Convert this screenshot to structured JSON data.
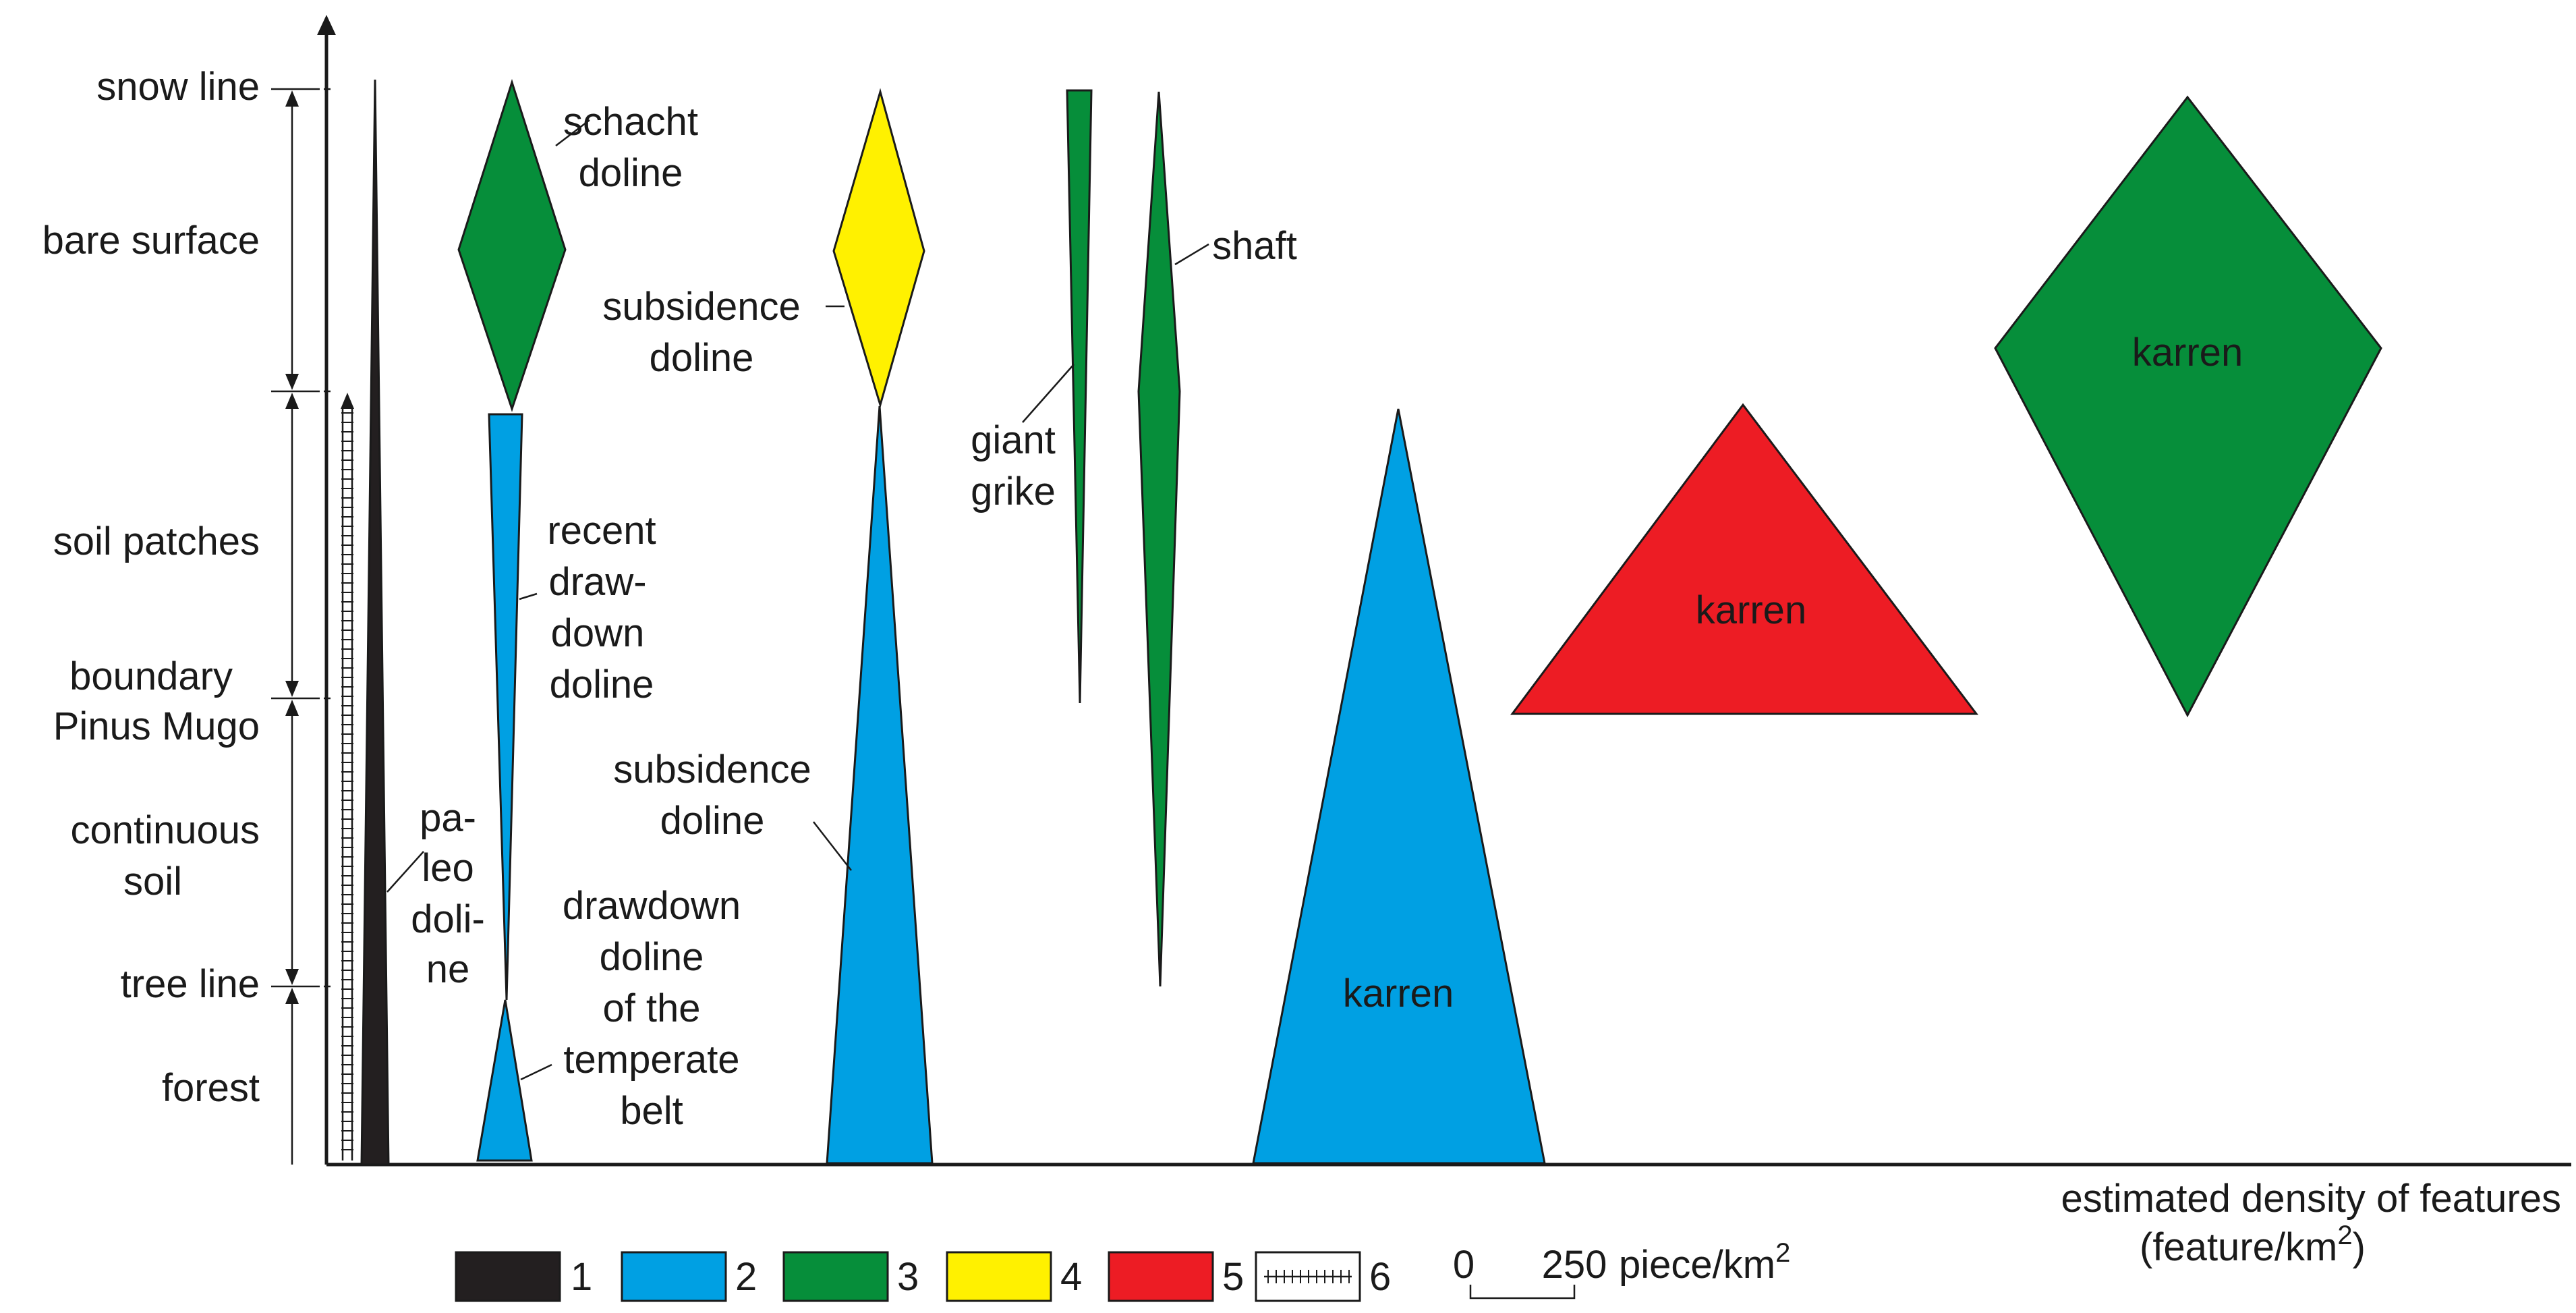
{
  "colors": {
    "1": "#231f20",
    "2": "#00a0e3",
    "3": "#068e3a",
    "4": "#fff100",
    "5": "#ed1c24"
  },
  "zones": {
    "snow_line": "snow line",
    "bare_surface": "bare surface",
    "soil_patches": "soil patches",
    "boundary_line1": "boundary",
    "boundary_line2": "Pinus Mugo",
    "continuous_soil_line1": "continuous",
    "continuous_soil_line2": "soil",
    "tree_line": "tree line",
    "forest": "forest"
  },
  "labels": {
    "schacht_line1": "schacht",
    "schacht_line2": "doline",
    "subsidence_top_line1": "subsidence",
    "subsidence_top_line2": "doline",
    "giant_grike_line1": "giant",
    "giant_grike_line2": "grike",
    "shaft": "shaft",
    "recent_line1": "recent",
    "recent_line2": "draw-",
    "recent_line3": "down",
    "recent_line4": "doline",
    "paleo_line1": "pa-",
    "paleo_line2": "leo",
    "paleo_line3": "doli-",
    "paleo_line4": "ne",
    "subsidence_lower_line1": "subsidence",
    "subsidence_lower_line2": "doline",
    "drawdown_line1": "drawdown",
    "drawdown_line2": "doline",
    "drawdown_line3": "of the",
    "drawdown_line4": "temperate",
    "drawdown_line5": "belt",
    "karren_blue": "karren",
    "karren_red": "karren",
    "karren_green": "karren"
  },
  "axis": {
    "xlabel_line1": "estimated density of features",
    "xlabel_line2": "(feature/km",
    "xlabel_sup": "2",
    "xlabel_close": ")"
  },
  "legend": {
    "item1": "1",
    "item2": "2",
    "item3": "3",
    "item4": "4",
    "item5": "5",
    "item6": "6",
    "scale_zero": "0",
    "scale_value": "250",
    "scale_unit": "piece/km",
    "scale_sup": "2"
  }
}
